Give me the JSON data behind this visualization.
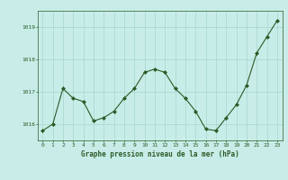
{
  "x": [
    0,
    1,
    2,
    3,
    4,
    5,
    6,
    7,
    8,
    9,
    10,
    11,
    12,
    13,
    14,
    15,
    16,
    17,
    18,
    19,
    20,
    21,
    22,
    23
  ],
  "y": [
    1015.8,
    1016.0,
    1017.1,
    1016.8,
    1016.7,
    1016.1,
    1016.2,
    1016.4,
    1016.8,
    1017.1,
    1017.6,
    1017.7,
    1017.6,
    1017.1,
    1016.8,
    1016.4,
    1015.85,
    1015.8,
    1016.2,
    1016.6,
    1017.2,
    1018.2,
    1018.7,
    1019.2
  ],
  "line_color": "#2d5a27",
  "marker_color": "#2d5a27",
  "bg_color": "#c8ede8",
  "grid_color": "#a8d5ce",
  "xlabel": "Graphe pression niveau de la mer (hPa)",
  "xlabel_color": "#2d5a27",
  "tick_color": "#2d5a27",
  "ylim": [
    1015.5,
    1019.5
  ],
  "yticks": [
    1016,
    1017,
    1018,
    1019
  ],
  "xticks": [
    0,
    1,
    2,
    3,
    4,
    5,
    6,
    7,
    8,
    9,
    10,
    11,
    12,
    13,
    14,
    15,
    16,
    17,
    18,
    19,
    20,
    21,
    22,
    23
  ]
}
